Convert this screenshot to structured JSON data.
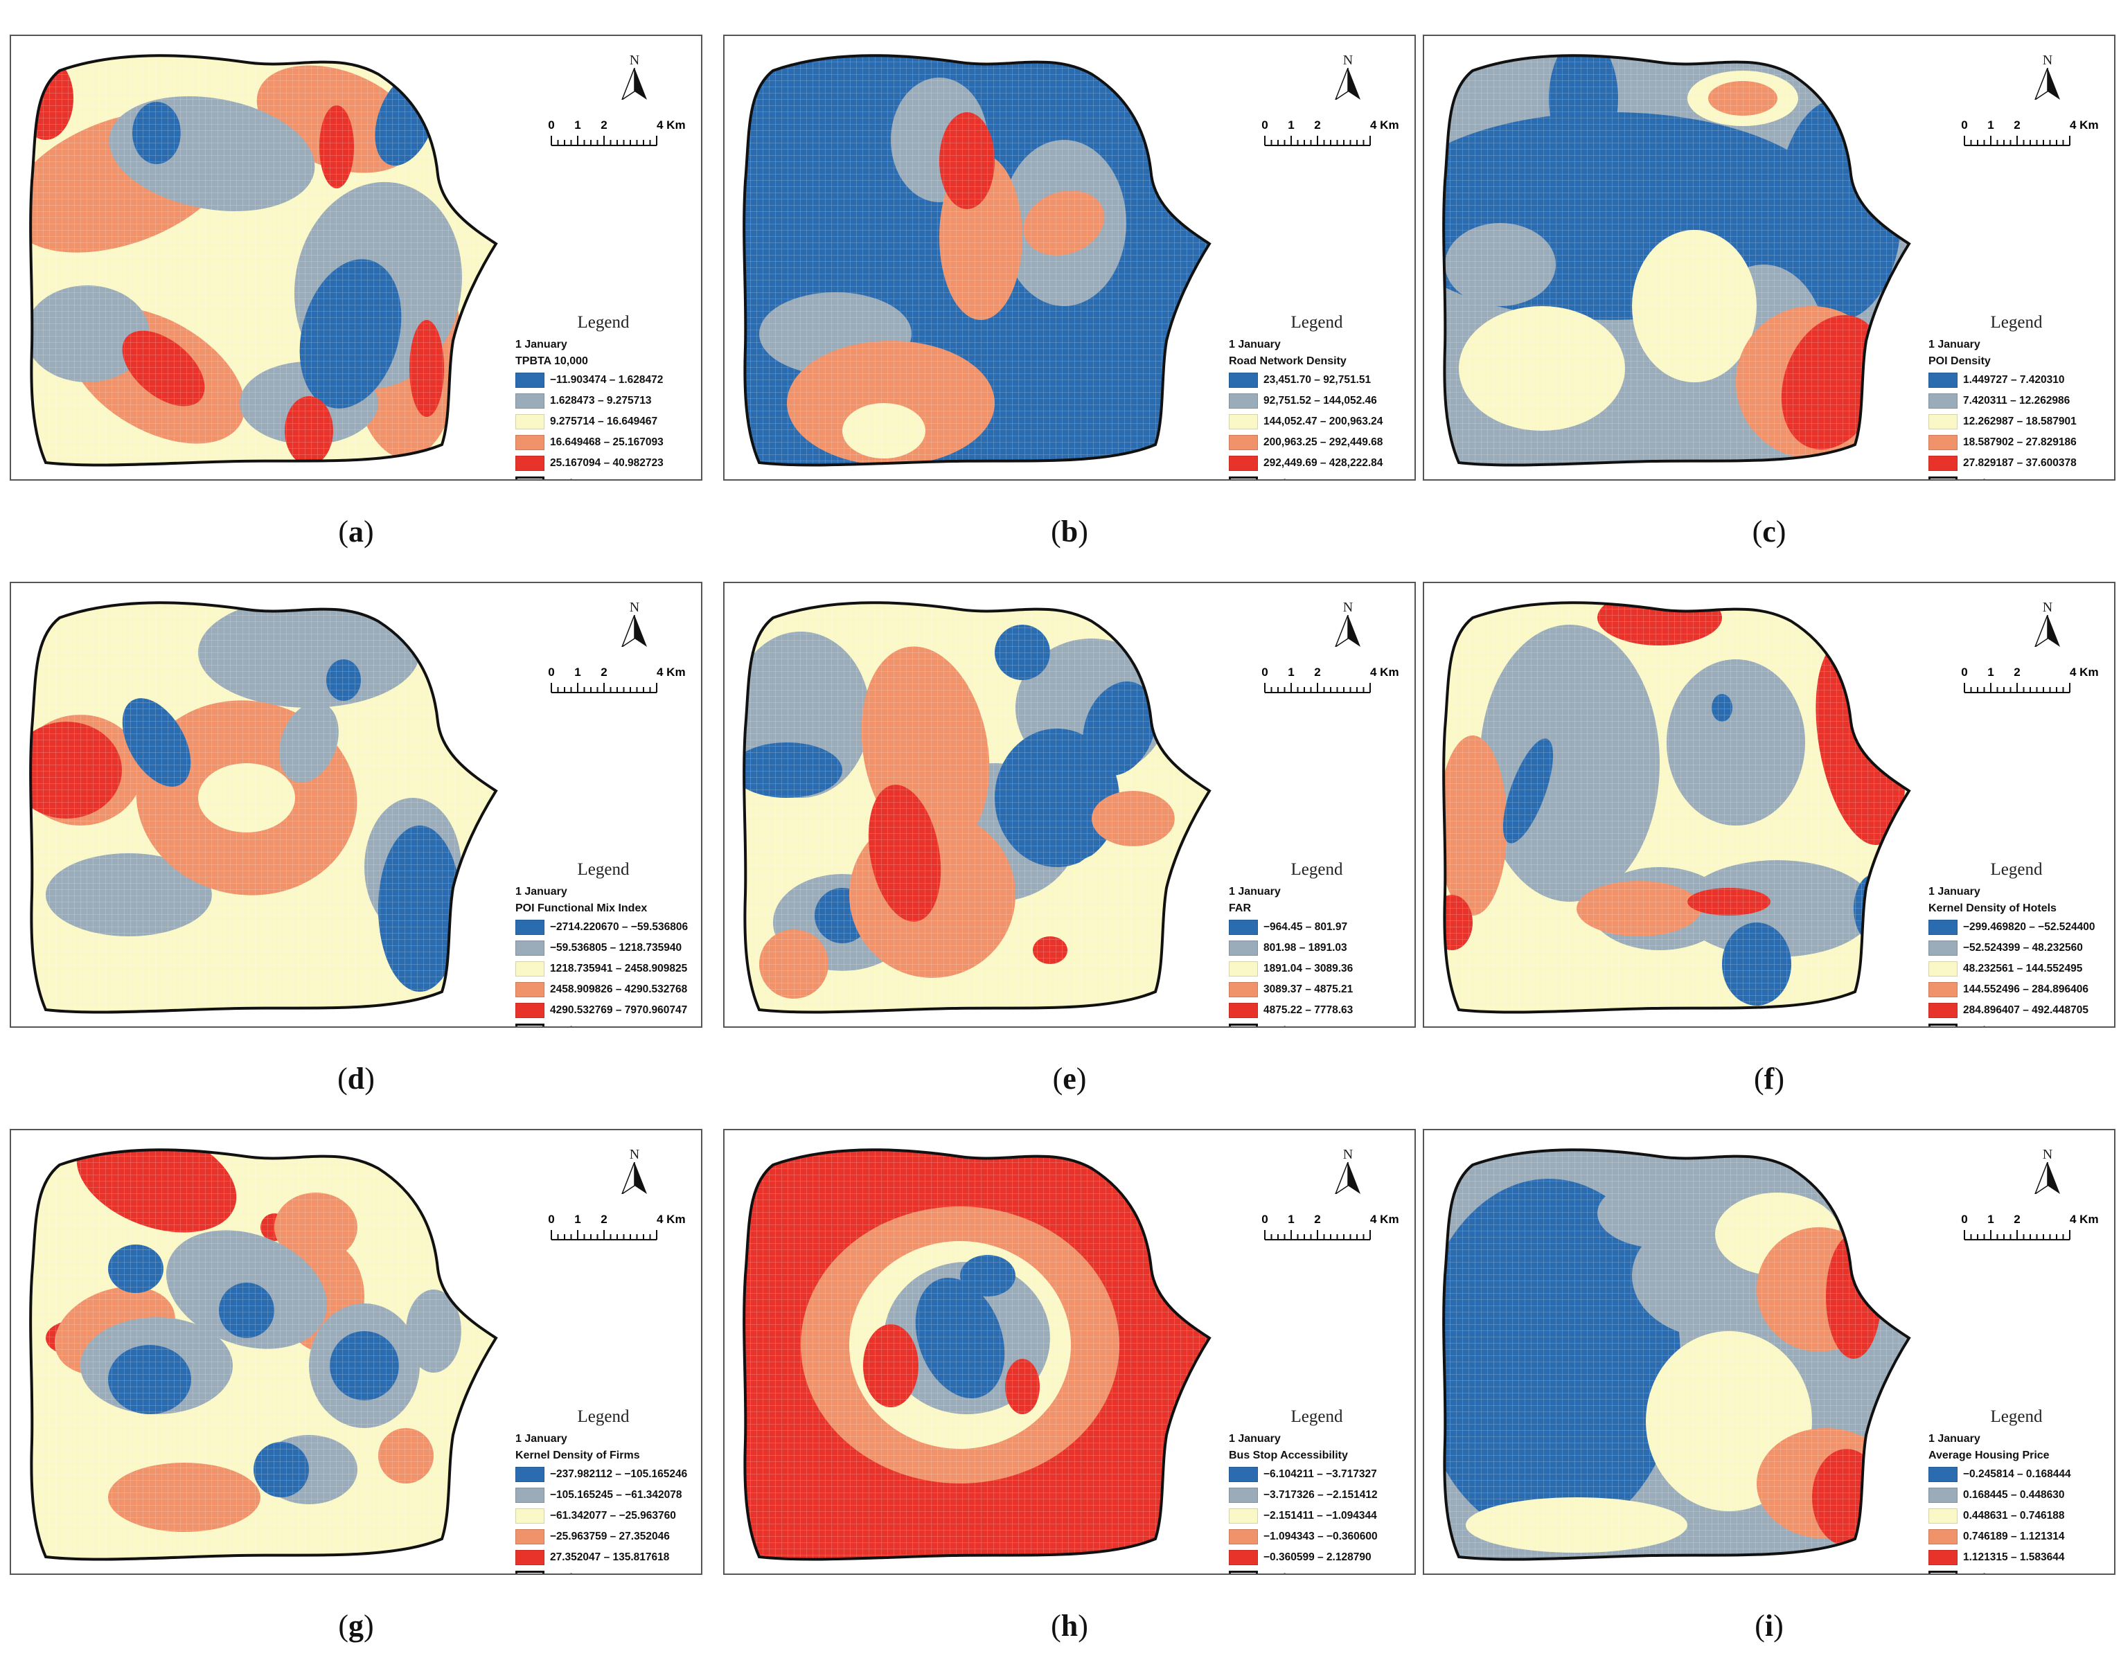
{
  "colors": {
    "c1": "#2b6cb0",
    "c2": "#9aabb9",
    "c3": "#fbf8c8",
    "c4": "#f0926a",
    "c5": "#e8332a",
    "outline": "#111111"
  },
  "scale": {
    "labels": [
      "0",
      "1",
      "2",
      "4 Km"
    ]
  },
  "north": {
    "label": "N",
    "arrow": "north-arrow-icon"
  },
  "panels": [
    {
      "letter": "a",
      "legend_title": "Legend",
      "date": "1 January",
      "variable": "TPBTA 10,000",
      "classes": [
        "−11.903474 – 1.628472",
        "1.628473 – 9.275713",
        "9.275714 – 16.649467",
        "16.649468 – 25.167093",
        "25.167094 – 40.982723"
      ],
      "study_area": "study area"
    },
    {
      "letter": "b",
      "legend_title": "Legend",
      "date": "1 January",
      "variable": "Road Network Density",
      "classes": [
        "23,451.70 – 92,751.51",
        "92,751.52 – 144,052.46",
        "144,052.47 – 200,963.24",
        "200,963.25 – 292,449.68",
        "292,449.69 – 428,222.84"
      ],
      "study_area": "study area"
    },
    {
      "letter": "c",
      "legend_title": "Legend",
      "date": "1 January",
      "variable": "POI Density",
      "classes": [
        "1.449727 – 7.420310",
        "7.420311 – 12.262986",
        "12.262987 – 18.587901",
        "18.587902 – 27.829186",
        "27.829187 – 37.600378"
      ],
      "study_area": "study area"
    },
    {
      "letter": "d",
      "legend_title": "Legend",
      "date": "1 January",
      "variable": "POI Functional Mix Index",
      "classes": [
        "−2714.220670 – −59.536806",
        "−59.536805 – 1218.735940",
        "1218.735941 – 2458.909825",
        "2458.909826 – 4290.532768",
        "4290.532769 – 7970.960747"
      ],
      "study_area": "study area"
    },
    {
      "letter": "e",
      "legend_title": "Legend",
      "date": "1 January",
      "variable": "FAR",
      "classes": [
        "−964.45 – 801.97",
        "801.98 – 1891.03",
        "1891.04 – 3089.36",
        "3089.37 – 4875.21",
        "4875.22 – 7778.63"
      ],
      "study_area": "study area"
    },
    {
      "letter": "f",
      "legend_title": "Legend",
      "date": "1 January",
      "variable": "Kernel Density of Hotels",
      "classes": [
        "−299.469820 – −52.524400",
        "−52.524399 – 48.232560",
        "48.232561 – 144.552495",
        "144.552496 – 284.896406",
        "284.896407 – 492.448705"
      ],
      "study_area": "study area"
    },
    {
      "letter": "g",
      "legend_title": "Legend",
      "date": "1 January",
      "variable": "Kernel Density of Firms",
      "classes": [
        "−237.982112 – −105.165246",
        "−105.165245 – −61.342078",
        "−61.342077 – −25.963760",
        "−25.963759 – 27.352046",
        "27.352047 – 135.817618"
      ],
      "study_area": "study area"
    },
    {
      "letter": "h",
      "legend_title": "Legend",
      "date": "1 January",
      "variable": "Bus Stop Accessibility",
      "classes": [
        "−6.104211 – −3.717327",
        "−3.717326 – −2.151412",
        "−2.151411 – −1.094344",
        "−1.094343 – −0.360600",
        "−0.360599 – 2.128790"
      ],
      "study_area": "study area"
    },
    {
      "letter": "i",
      "legend_title": "Legend",
      "date": "1 January",
      "variable": "Average Housing Price",
      "classes": [
        "−0.245814 – 0.168444",
        "0.168445 – 0.448630",
        "0.448631 – 0.746188",
        "0.746189 – 1.121314",
        "1.121315 – 1.583644"
      ],
      "study_area": "study area"
    }
  ]
}
